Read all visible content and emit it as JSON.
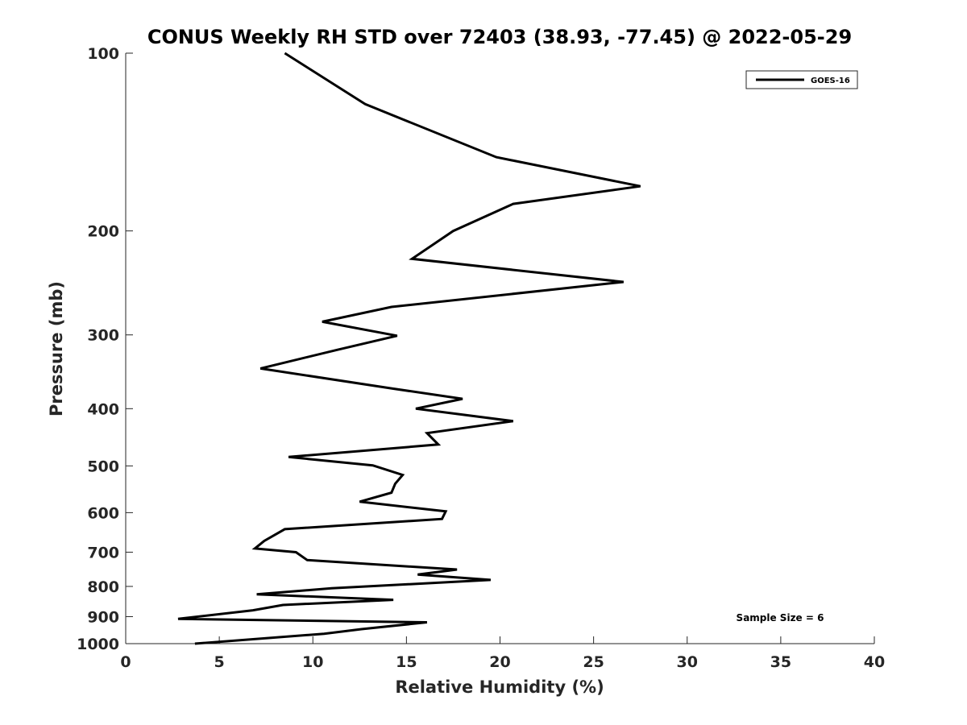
{
  "chart_data": {
    "type": "line",
    "title": "CONUS Weekly RH STD over 72403 (38.93, -77.45) @ 2022-05-29",
    "xlabel": "Relative Humidity (%)",
    "ylabel": "Pressure (mb)",
    "xlim": [
      0,
      40
    ],
    "ylim": [
      1000,
      100
    ],
    "y_scale": "log",
    "y_reversed": true,
    "grid": false,
    "legend_position": "top-right",
    "x_ticks": [
      0,
      5,
      10,
      15,
      20,
      25,
      30,
      35,
      40
    ],
    "y_ticks": [
      100,
      200,
      300,
      400,
      500,
      600,
      700,
      800,
      900,
      1000
    ],
    "annotation": "Sample Size = 6",
    "series": [
      {
        "name": "GOES-16",
        "color": "#000000",
        "points": [
          [
            8.5,
            100
          ],
          [
            12.8,
            122
          ],
          [
            19.8,
            150
          ],
          [
            27.5,
            168
          ],
          [
            20.7,
            180
          ],
          [
            17.5,
            200
          ],
          [
            15.3,
            223
          ],
          [
            26.6,
            244
          ],
          [
            14.2,
            269
          ],
          [
            10.5,
            285
          ],
          [
            14.5,
            301
          ],
          [
            11.3,
            318
          ],
          [
            7.2,
            342
          ],
          [
            14.3,
            370
          ],
          [
            18.0,
            385
          ],
          [
            15.5,
            400
          ],
          [
            20.7,
            420
          ],
          [
            16.1,
            440
          ],
          [
            16.7,
            460
          ],
          [
            8.7,
            483
          ],
          [
            13.2,
            499
          ],
          [
            14.8,
            518
          ],
          [
            14.4,
            536
          ],
          [
            14.2,
            555
          ],
          [
            12.5,
            575
          ],
          [
            17.1,
            597
          ],
          [
            16.9,
            615
          ],
          [
            8.5,
            640
          ],
          [
            7.4,
            670
          ],
          [
            6.9,
            690
          ],
          [
            9.1,
            700
          ],
          [
            9.7,
            722
          ],
          [
            17.7,
            749
          ],
          [
            15.6,
            764
          ],
          [
            19.5,
            780
          ],
          [
            11.0,
            806
          ],
          [
            7.0,
            825
          ],
          [
            14.3,
            843
          ],
          [
            8.4,
            860
          ],
          [
            6.8,
            878
          ],
          [
            2.8,
            908
          ],
          [
            16.1,
            920
          ],
          [
            12.6,
            945
          ],
          [
            10.6,
            962
          ],
          [
            3.7,
            1000
          ]
        ]
      }
    ]
  }
}
